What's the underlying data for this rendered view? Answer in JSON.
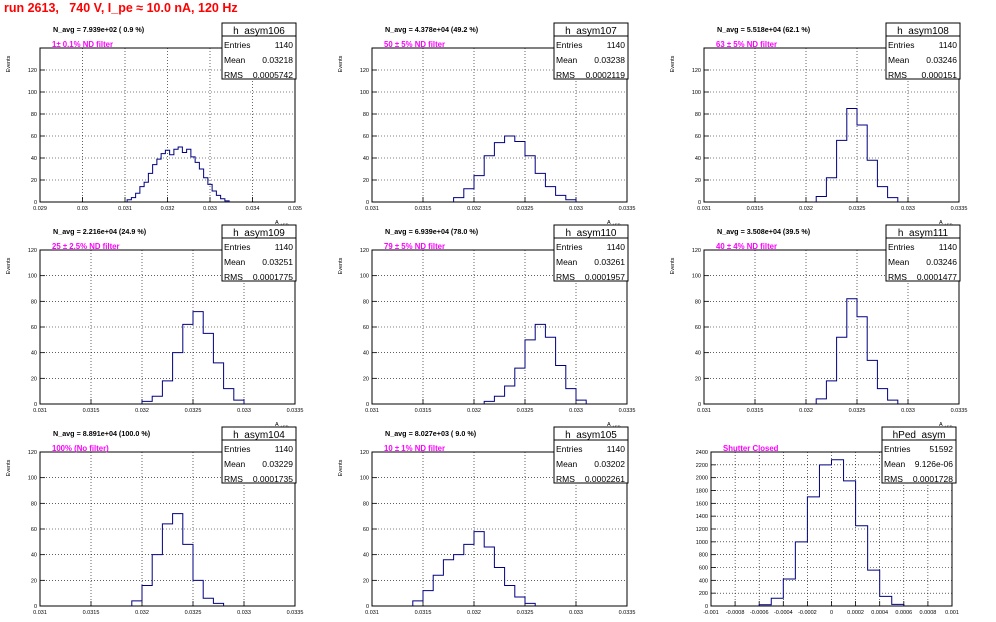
{
  "title": "run 2613,   740 V, I_pe ≈ 10.0 nA, 120 Hz",
  "colors": {
    "histogram": "#000080",
    "annotation": "#ff00ff",
    "title": "#ff0000",
    "grid": "#000000"
  },
  "chart_data": [
    {
      "type": "histogram",
      "name": "h_asym106",
      "ylabel": "Events",
      "xlabel": "A",
      "xlabel_sub": "LED",
      "nlabel": "N_avg  = 7.939e+02 ( 0.9 %)",
      "filter": "1± 0.1% ND filter",
      "stats": {
        "entries": "1140",
        "mean": "0.03218",
        "rms": "0.0005742"
      },
      "xlim": [
        0.029,
        0.035
      ],
      "ylim": [
        0,
        140
      ],
      "yticks": [
        0,
        20,
        40,
        60,
        80,
        100,
        120
      ],
      "xticks": [
        "0.029",
        "0.03",
        "0.031",
        "0.032",
        "0.033",
        "0.034",
        "0.035"
      ],
      "centers": [
        0.0311,
        0.0312,
        0.0313,
        0.0314,
        0.0315,
        0.0316,
        0.0317,
        0.0318,
        0.0319,
        0.032,
        0.0321,
        0.0322,
        0.0323,
        0.0324,
        0.0325,
        0.0326,
        0.0327,
        0.0328,
        0.0329,
        0.033,
        0.0331,
        0.0332,
        0.0333,
        0.0334
      ],
      "counts": [
        2,
        4,
        8,
        14,
        18,
        26,
        34,
        39,
        44,
        47,
        43,
        48,
        50,
        45,
        48,
        41,
        36,
        30,
        22,
        16,
        10,
        6,
        3,
        1
      ]
    },
    {
      "type": "histogram",
      "name": "h_asym107",
      "ylabel": "Events",
      "xlabel": "A",
      "xlabel_sub": "LED",
      "nlabel": "N_avg  = 4.378e+04 (49.2 %)",
      "filter": "50 ± 5% ND filter",
      "stats": {
        "entries": "1140",
        "mean": "0.03238",
        "rms": "0.0002119"
      },
      "xlim": [
        0.031,
        0.0335
      ],
      "ylim": [
        0,
        140
      ],
      "yticks": [
        0,
        20,
        40,
        60,
        80,
        100,
        120
      ],
      "xticks": [
        "0.031",
        "0.0315",
        "0.032",
        "0.0325",
        "0.033",
        "0.0335"
      ],
      "centers": [
        0.03185,
        0.03195,
        0.03205,
        0.03215,
        0.03225,
        0.03235,
        0.03245,
        0.03255,
        0.03265,
        0.03275,
        0.03285,
        0.03295
      ],
      "counts": [
        4,
        12,
        24,
        42,
        54,
        60,
        55,
        42,
        26,
        14,
        6,
        2
      ]
    },
    {
      "type": "histogram",
      "name": "h_asym108",
      "ylabel": "Events",
      "xlabel": "A",
      "xlabel_sub": "LED",
      "nlabel": "N_avg  = 5.518e+04 (62.1 %)",
      "filter": "63 ± 5% ND filter",
      "stats": {
        "entries": "1140",
        "mean": "0.03246",
        "rms": "0.000151"
      },
      "xlim": [
        0.031,
        0.0335
      ],
      "ylim": [
        0,
        140
      ],
      "yticks": [
        0,
        20,
        40,
        60,
        80,
        100,
        120
      ],
      "xticks": [
        "0.031",
        "0.0315",
        "0.032",
        "0.0325",
        "0.033",
        "0.0335"
      ],
      "centers": [
        0.03215,
        0.03225,
        0.03235,
        0.03245,
        0.03255,
        0.03265,
        0.03275,
        0.03285
      ],
      "counts": [
        5,
        22,
        56,
        85,
        70,
        38,
        14,
        4
      ]
    },
    {
      "type": "histogram",
      "name": "h_asym109",
      "ylabel": "Events",
      "xlabel": "A",
      "xlabel_sub": "LED",
      "nlabel": "N_avg  = 2.216e+04 (24.9 %)",
      "filter": "25 ± 2.5% ND filter",
      "stats": {
        "entries": "1140",
        "mean": "0.03251",
        "rms": "0.0001775"
      },
      "xlim": [
        0.031,
        0.0335
      ],
      "ylim": [
        0,
        120
      ],
      "yticks": [
        0,
        20,
        40,
        60,
        80,
        100,
        120
      ],
      "xticks": [
        "0.031",
        "0.0315",
        "0.032",
        "0.0325",
        "0.033",
        "0.0335"
      ],
      "centers": [
        0.03205,
        0.03215,
        0.03225,
        0.03235,
        0.03245,
        0.03255,
        0.03265,
        0.03275,
        0.03285,
        0.03295
      ],
      "counts": [
        2,
        6,
        18,
        40,
        62,
        72,
        55,
        32,
        12,
        3
      ]
    },
    {
      "type": "histogram",
      "name": "h_asym110",
      "ylabel": "Events",
      "xlabel": "A",
      "xlabel_sub": "LED",
      "nlabel": "N_avg  = 6.939e+04 (78.0 %)",
      "filter": "79 ± 5% ND filter",
      "stats": {
        "entries": "1140",
        "mean": "0.03261",
        "rms": "0.0001957"
      },
      "xlim": [
        0.031,
        0.0335
      ],
      "ylim": [
        0,
        120
      ],
      "yticks": [
        0,
        20,
        40,
        60,
        80,
        100,
        120
      ],
      "xticks": [
        "0.031",
        "0.0315",
        "0.032",
        "0.0325",
        "0.033",
        "0.0335"
      ],
      "centers": [
        0.03215,
        0.03225,
        0.03235,
        0.03245,
        0.03255,
        0.03265,
        0.03275,
        0.03285,
        0.03295,
        0.03305
      ],
      "counts": [
        2,
        6,
        14,
        28,
        50,
        62,
        52,
        30,
        12,
        3
      ]
    },
    {
      "type": "histogram",
      "name": "h_asym111",
      "ylabel": "Events",
      "xlabel": "A",
      "xlabel_sub": "LED",
      "nlabel": "N_avg  = 3.508e+04 (39.5 %)",
      "filter": "40 ± 4% ND filter",
      "stats": {
        "entries": "1140",
        "mean": "0.03246",
        "rms": "0.0001477"
      },
      "xlim": [
        0.031,
        0.0335
      ],
      "ylim": [
        0,
        120
      ],
      "yticks": [
        0,
        20,
        40,
        60,
        80,
        100,
        120
      ],
      "xticks": [
        "0.031",
        "0.0315",
        "0.032",
        "0.0325",
        "0.033",
        "0.0335"
      ],
      "centers": [
        0.03215,
        0.03225,
        0.03235,
        0.03245,
        0.03255,
        0.03265,
        0.03275,
        0.03285
      ],
      "counts": [
        4,
        18,
        52,
        82,
        68,
        34,
        12,
        3
      ]
    },
    {
      "type": "histogram",
      "name": "h_asym104",
      "ylabel": "Events",
      "xlabel": "A",
      "xlabel_sub": "LED",
      "nlabel": "N_avg  = 8.891e+04 (100.0 %)",
      "filter": "100% (No filter)",
      "stats": {
        "entries": "1140",
        "mean": "0.03229",
        "rms": "0.0001735"
      },
      "xlim": [
        0.031,
        0.0335
      ],
      "ylim": [
        0,
        120
      ],
      "yticks": [
        0,
        20,
        40,
        60,
        80,
        100,
        120
      ],
      "xticks": [
        "0.031",
        "0.0315",
        "0.032",
        "0.0325",
        "0.033",
        "0.0335"
      ],
      "centers": [
        0.03195,
        0.03205,
        0.03215,
        0.03225,
        0.03235,
        0.03245,
        0.03255,
        0.03265,
        0.03275
      ],
      "counts": [
        4,
        16,
        40,
        64,
        72,
        48,
        20,
        6,
        2
      ]
    },
    {
      "type": "histogram",
      "name": "h_asym105",
      "ylabel": "Events",
      "xlabel": "A",
      "xlabel_sub": "LED",
      "nlabel": "N_avg  = 8.027e+03 ( 9.0 %)",
      "filter": "10 ± 1% ND filter",
      "stats": {
        "entries": "1140",
        "mean": "0.03202",
        "rms": "0.0002261"
      },
      "xlim": [
        0.031,
        0.0335
      ],
      "ylim": [
        0,
        120
      ],
      "yticks": [
        0,
        20,
        40,
        60,
        80,
        100,
        120
      ],
      "xticks": [
        "0.031",
        "0.0315",
        "0.032",
        "0.0325",
        "0.033",
        "0.0335"
      ],
      "centers": [
        0.03145,
        0.03155,
        0.03165,
        0.03175,
        0.03185,
        0.03195,
        0.03205,
        0.03215,
        0.03225,
        0.03235,
        0.03245,
        0.03255
      ],
      "counts": [
        4,
        12,
        24,
        36,
        40,
        48,
        58,
        46,
        30,
        16,
        7,
        2
      ]
    },
    {
      "type": "histogram",
      "name": "hPed_asym",
      "ylabel": "",
      "xlabel": "",
      "xlabel_sub": "",
      "nlabel": "",
      "filter": "Shutter Closed",
      "stats": {
        "entries": "51592",
        "mean": "9.126e-06",
        "rms": "0.0001728"
      },
      "xlim": [
        -0.001,
        0.001
      ],
      "ylim": [
        0,
        2400
      ],
      "yticks": [
        0,
        200,
        400,
        600,
        800,
        1000,
        1200,
        1400,
        1600,
        1800,
        2000,
        2200,
        2400
      ],
      "xticks": [
        "-0.001",
        "-0.0008",
        "-0.0006",
        "-0.0004",
        "-0.0002",
        "0",
        "0.0002",
        "0.0004",
        "0.0006",
        "0.0008",
        "0.001"
      ],
      "centers": [
        -0.00055,
        -0.00045,
        -0.00035,
        -0.00025,
        -0.00015,
        -5e-05,
        5e-05,
        0.00015,
        0.00025,
        0.00035,
        0.00045,
        0.00055
      ],
      "counts": [
        20,
        120,
        420,
        1000,
        1700,
        2200,
        2280,
        1950,
        1250,
        560,
        150,
        25
      ]
    }
  ]
}
